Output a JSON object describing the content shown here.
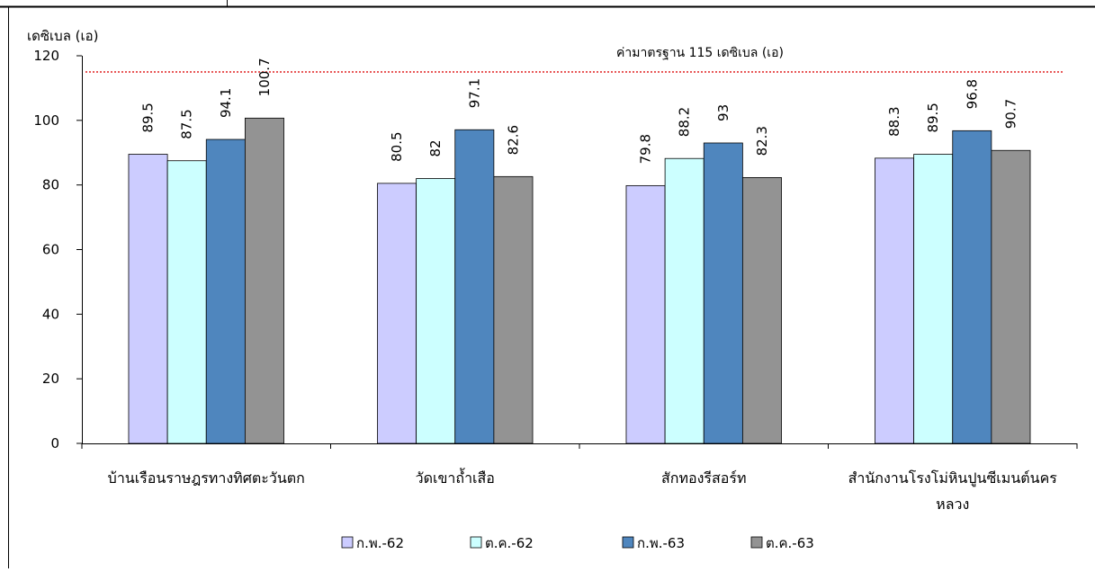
{
  "chart_data": {
    "type": "bar",
    "ylabel": "เดซิเบล (เอ)",
    "ylim": [
      0,
      120
    ],
    "yticks": [
      0,
      20,
      40,
      60,
      80,
      100,
      120
    ],
    "categories": [
      [
        "บ้านเรือนราษฎรทางทิศตะวันตก"
      ],
      [
        "วัดเขาถ้ำเสือ"
      ],
      [
        "สักทองรีสอร์ท"
      ],
      [
        "สำนักงานโรงโม่หินปูนซีเมนต์นคร",
        "หลวง"
      ]
    ],
    "series": [
      {
        "name": "ก.พ.-62",
        "color": "#ccccff",
        "values": [
          89.5,
          80.5,
          79.8,
          88.3
        ],
        "labels": [
          "89.5",
          "80.5",
          "79.8",
          "88.3"
        ]
      },
      {
        "name": "ต.ค.-62",
        "color": "#ccffff",
        "values": [
          87.5,
          82,
          88.2,
          89.5
        ],
        "labels": [
          "87.5",
          "82",
          "88.2",
          "89.5"
        ]
      },
      {
        "name": "ก.พ.-63",
        "color": "#4f86be",
        "values": [
          94.1,
          97.1,
          93,
          96.8
        ],
        "labels": [
          "94.1",
          "97.1",
          "93",
          "96.8"
        ]
      },
      {
        "name": "ต.ค.-63",
        "color": "#939393",
        "values": [
          100.7,
          82.6,
          82.3,
          90.7
        ],
        "labels": [
          "100.7",
          "82.6",
          "82.3",
          "90.7"
        ]
      }
    ],
    "reference_line": {
      "value": 115,
      "label": "ค่ามาตรฐาน 115 เดซิเบล (เอ)",
      "color": "#e02020"
    },
    "grid": false,
    "legend": "bottom"
  }
}
